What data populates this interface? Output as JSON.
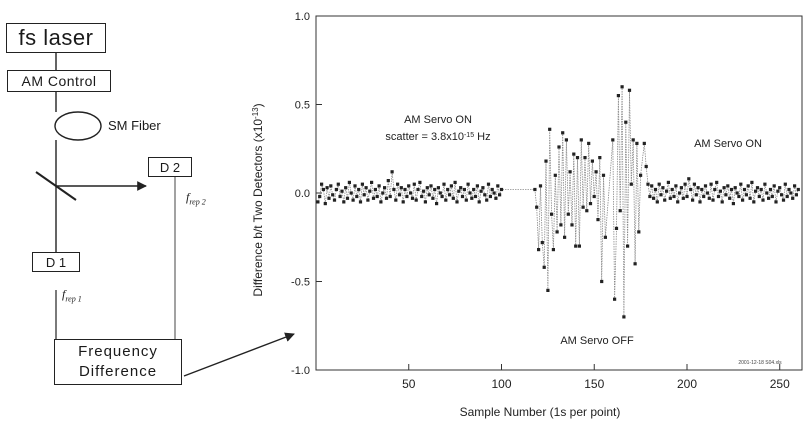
{
  "schematic": {
    "laser_label": "fs laser",
    "am_control_label": "AM Control",
    "fiber_label": "SM Fiber",
    "d1_label": "D 1",
    "d2_label": "D 2",
    "frep1_label": "f",
    "frep1_sub": "rep 1",
    "frep2_label": "f",
    "frep2_sub": "rep 2",
    "freq_diff_line1": "Frequency",
    "freq_diff_line2": "Difference"
  },
  "chart_data": {
    "type": "line",
    "title": "",
    "xlabel": "Sample Number (1s per point)",
    "ylabel": "Difference b/t Two Detectors (x10",
    "ylabel_exp": "-13",
    "ylabel_close": ")",
    "xlim": [
      0,
      262
    ],
    "ylim": [
      -1.0,
      1.0
    ],
    "xticks": [
      50,
      100,
      150,
      200,
      250
    ],
    "yticks": [
      1.0,
      0.5,
      0.0,
      -0.5,
      -1.0
    ],
    "ytick_labels": [
      "1.0",
      "0.5",
      "0.0",
      "-0.5",
      "-1.0"
    ],
    "grid": false,
    "annotations": {
      "servo_on_left": "AM Servo ON",
      "scatter_text": "scatter = 3.8x10",
      "scatter_exp": "-15",
      "scatter_unit": " Hz",
      "servo_on_right": "AM Servo ON",
      "servo_off": "AM Servo OFF",
      "stamp": "2001-12-18 S04.xls"
    },
    "series": [
      {
        "segments": [
          {
            "x_start": 1,
            "values": [
              -0.05,
              -0.02,
              0.05,
              0.02,
              -0.06,
              0.03,
              -0.03,
              0.04,
              -0.01,
              -0.04,
              0.02,
              0.05,
              -0.02,
              0.01,
              -0.05,
              0.03,
              -0.03,
              0.06,
              0.0,
              -0.04,
              0.04,
              -0.02,
              0.02,
              -0.05,
              0.05,
              -0.01,
              0.03,
              -0.04,
              0.01,
              0.06,
              -0.03,
              0.02,
              -0.02,
              0.04,
              -0.05,
              0.0,
              0.03,
              -0.03,
              0.07,
              -0.02,
              0.12,
              0.02,
              -0.04,
              0.05,
              -0.01,
              0.03,
              -0.05,
              0.02,
              -0.02,
              0.04,
              0.0,
              -0.03,
              0.05,
              -0.04,
              0.02,
              0.06,
              -0.02,
              0.01,
              -0.05,
              0.03,
              -0.01,
              0.04,
              -0.03,
              0.02,
              -0.06,
              0.03,
              0.0,
              -0.02,
              0.05,
              -0.04,
              0.02,
              -0.01,
              0.04,
              -0.03,
              0.06,
              -0.05,
              0.01,
              0.03,
              -0.02,
              0.02,
              -0.04,
              0.05,
              0.0,
              -0.03,
              0.02,
              -0.02,
              0.04,
              -0.05,
              0.01,
              0.03,
              -0.01,
              -0.04,
              0.05,
              -0.02,
              0.02,
              0.0,
              -0.03,
              0.04,
              -0.01,
              0.02
            ]
          },
          {
            "x_start": 118,
            "values": [
              0.02,
              -0.08,
              -0.32,
              0.04,
              -0.28,
              -0.42,
              0.18,
              -0.55,
              0.36,
              -0.12,
              -0.32,
              0.1,
              -0.22,
              0.26,
              -0.18,
              0.34,
              -0.25,
              0.3,
              -0.12,
              0.12,
              -0.18,
              0.22,
              -0.3,
              0.2,
              -0.3,
              0.3,
              -0.08,
              0.2,
              -0.1,
              0.28,
              -0.06,
              0.18,
              -0.02,
              0.12,
              -0.15,
              0.2,
              -0.5,
              0.1,
              -0.25
            ]
          },
          {
            "x_start": 160,
            "values": [
              0.3,
              -0.6,
              -0.2,
              0.55,
              -0.1,
              0.6,
              -0.7,
              0.4,
              -0.3,
              0.58,
              0.05,
              0.3,
              -0.4,
              0.28,
              -0.22,
              0.1
            ]
          },
          {
            "x_start": 177,
            "values": [
              0.28,
              0.15,
              0.05,
              -0.02,
              0.04,
              -0.03,
              0.02,
              -0.05,
              0.05,
              -0.01,
              0.03,
              -0.04,
              0.01,
              0.06,
              -0.03,
              0.02,
              -0.02,
              0.04,
              -0.05,
              0.0,
              0.03,
              -0.03,
              0.05,
              -0.02,
              0.08,
              0.02,
              -0.04,
              0.05,
              -0.01,
              0.03,
              -0.05,
              0.02,
              -0.02,
              0.04,
              0.0,
              -0.03,
              0.05,
              -0.04,
              0.02,
              0.06,
              -0.02,
              0.01,
              -0.05,
              0.03,
              -0.01,
              0.04,
              -0.03,
              0.02,
              -0.06,
              0.03,
              0.0,
              -0.02,
              0.05,
              -0.04,
              0.02,
              -0.01,
              0.04,
              -0.03,
              0.06,
              -0.05,
              0.01,
              0.03,
              -0.02,
              0.02,
              -0.04,
              0.05,
              0.0,
              -0.03,
              0.02,
              -0.02,
              0.04,
              -0.05,
              0.01,
              0.03,
              -0.01,
              -0.04,
              0.05,
              -0.02,
              0.02,
              0.0,
              -0.03,
              0.04,
              -0.01,
              0.02
            ]
          }
        ]
      }
    ]
  }
}
